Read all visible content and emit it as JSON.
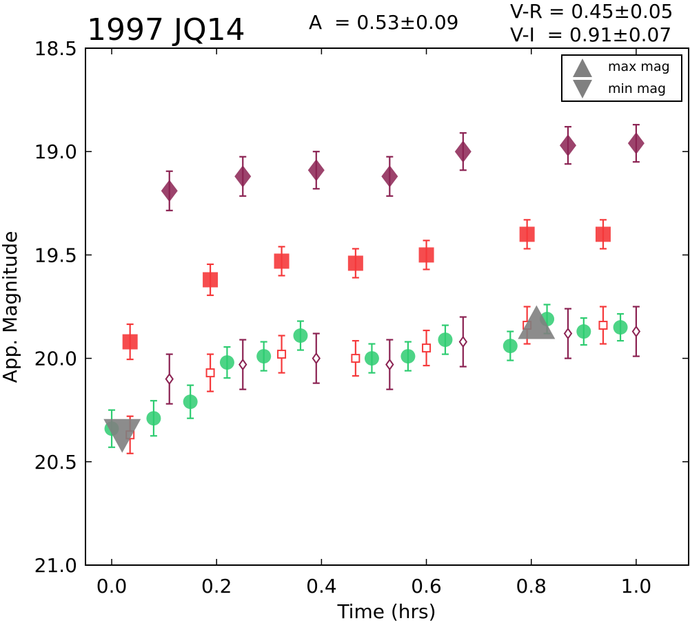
{
  "chart_data": {
    "type": "scatter",
    "title": "1997 JQ14",
    "amplitude_label": "A  = 0.53±0.09",
    "color_labels": [
      "V-R = 0.45±0.05",
      "V-I  = 0.91±0.07"
    ],
    "xlabel": "Time (hrs)",
    "ylabel": "App. Magnitude",
    "xlim": [
      -0.05,
      1.1
    ],
    "ylim": [
      21.0,
      18.5
    ],
    "y_inverted": true,
    "xticks": [
      "0.0",
      "0.2",
      "0.4",
      "0.6",
      "0.8",
      "1.0"
    ],
    "yticks": [
      "18.5",
      "19.0",
      "19.5",
      "20.0",
      "20.5",
      "21.0"
    ],
    "grid": false,
    "legend": {
      "position": "top-right",
      "entries": [
        {
          "label": "max mag",
          "marker": "triangle-up",
          "color": "#808080"
        },
        {
          "label": "min mag",
          "marker": "triangle-down",
          "color": "#808080"
        }
      ]
    },
    "markers": {
      "max": {
        "x": 0.81,
        "y": 19.85,
        "color": "#808080"
      },
      "min": {
        "x": 0.02,
        "y": 20.35,
        "color": "#808080"
      }
    },
    "series": [
      {
        "marker": "diamond-filled",
        "color": "#8B2252",
        "x": [
          0.11,
          0.25,
          0.39,
          0.53,
          0.67,
          0.87,
          1.0
        ],
        "y": [
          19.19,
          19.12,
          19.09,
          19.12,
          19.0,
          18.97,
          18.96
        ],
        "err": [
          0.095,
          0.095,
          0.09,
          0.095,
          0.09,
          0.09,
          0.09
        ]
      },
      {
        "marker": "square-filled",
        "color": "#F5393B",
        "x": [
          0.035,
          0.188,
          0.324,
          0.465,
          0.6,
          0.792,
          0.937
        ],
        "y": [
          19.92,
          19.62,
          19.53,
          19.54,
          19.5,
          19.4,
          19.4
        ],
        "err": [
          0.085,
          0.075,
          0.07,
          0.07,
          0.07,
          0.07,
          0.07
        ]
      },
      {
        "marker": "circle-filled",
        "color": "#2ECC71",
        "x": [
          0.0,
          0.08,
          0.15,
          0.22,
          0.29,
          0.36,
          0.496,
          0.565,
          0.636,
          0.76,
          0.83,
          0.9,
          0.97
        ],
        "y": [
          20.34,
          20.29,
          20.21,
          20.02,
          19.99,
          19.89,
          20.0,
          19.99,
          19.91,
          19.94,
          19.81,
          19.87,
          19.85
        ],
        "err": [
          0.09,
          0.085,
          0.08,
          0.075,
          0.07,
          0.07,
          0.07,
          0.07,
          0.07,
          0.07,
          0.07,
          0.065,
          0.065
        ]
      },
      {
        "marker": "square-open",
        "color": "#F5393B",
        "x": [
          0.035,
          0.188,
          0.324,
          0.465,
          0.6,
          0.792,
          0.937
        ],
        "y": [
          20.37,
          20.07,
          19.98,
          20.0,
          19.95,
          19.84,
          19.84
        ],
        "err": [
          0.09,
          0.09,
          0.09,
          0.085,
          0.085,
          0.09,
          0.09
        ]
      },
      {
        "marker": "diamond-open",
        "color": "#8B2252",
        "x": [
          0.11,
          0.25,
          0.39,
          0.53,
          0.67,
          0.87,
          1.0
        ],
        "y": [
          20.1,
          20.03,
          20.0,
          20.03,
          19.92,
          19.88,
          19.87
        ],
        "err": [
          0.12,
          0.12,
          0.12,
          0.12,
          0.12,
          0.12,
          0.12
        ]
      }
    ]
  }
}
